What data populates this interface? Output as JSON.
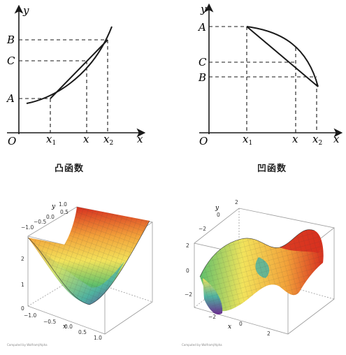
{
  "top_left": {
    "axis_y": "y",
    "axis_x": "x",
    "origin": "O",
    "label_b": "B",
    "label_c": "C",
    "label_a": "A",
    "tick_x1": "x",
    "tick_x1_sub": "1",
    "tick_x": "x",
    "tick_x2": "x",
    "tick_x2_sub": "2",
    "caption": "凸函数"
  },
  "top_right": {
    "axis_y": "y",
    "axis_x": "x",
    "origin": "O",
    "label_a": "A",
    "label_c": "C",
    "label_b": "B",
    "tick_x1": "x",
    "tick_x1_sub": "1",
    "tick_x": "x",
    "tick_x2": "x",
    "tick_x2_sub": "2",
    "caption": "凹函数"
  },
  "bottom_left": {
    "y_label": "y",
    "x_label": "x",
    "y_ticks": [
      "1.0",
      "0.5",
      "0.0",
      "−0.5",
      "−1.0"
    ],
    "z_ticks": [
      "2",
      "1",
      "0"
    ],
    "x_ticks": [
      "−1.0",
      "−0.5",
      "0.0",
      "0.5",
      "1.0"
    ],
    "credit": "Computed by Wolfram|Alpha"
  },
  "bottom_right": {
    "y_label": "y",
    "x_label": "x",
    "y_ticks": [
      "2",
      "0",
      "−2"
    ],
    "z_ticks": [
      "2",
      "0",
      "−2"
    ],
    "x_ticks": [
      "−2",
      "0",
      "2"
    ],
    "credit": "Computed by Wolfram|Alpha"
  },
  "colors": {
    "line": "#1a1a1a",
    "surface_red": "#d7301f",
    "surface_yellow": "#f2e35b",
    "surface_green": "#5fbf6b",
    "surface_blue": "#2c5fb8",
    "surface_purple": "#6b2d8f"
  }
}
